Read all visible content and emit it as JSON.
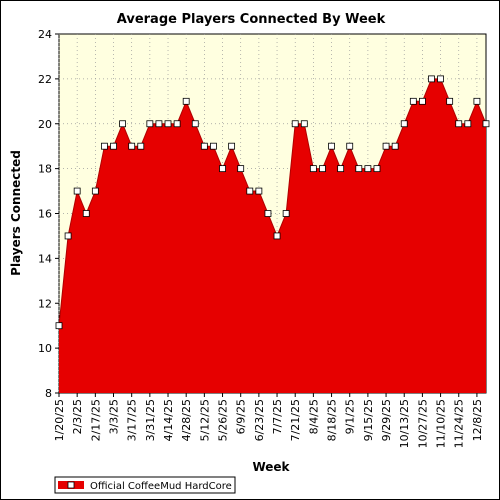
{
  "chart_data": {
    "type": "area",
    "title": "Average Players Connected By Week",
    "xlabel": "Week",
    "ylabel": "Players Connected",
    "ylim": [
      8,
      24
    ],
    "yticks": [
      8,
      10,
      12,
      14,
      16,
      18,
      20,
      22,
      24
    ],
    "grid": true,
    "legend_position": "bottom-left",
    "colors": {
      "plot_background": "#ffffe0",
      "area_fill": "#e60000",
      "grid": "#9a9a9a",
      "marker_fill": "#ffffff"
    },
    "x_tick_labels": [
      "1/20/25",
      "2/3/25",
      "2/17/25",
      "3/3/25",
      "3/17/25",
      "3/31/25",
      "4/14/25",
      "4/28/25",
      "5/12/25",
      "5/26/25",
      "6/9/25",
      "6/23/25",
      "7/7/25",
      "7/21/25",
      "8/4/25",
      "8/18/25",
      "9/1/25",
      "9/15/25",
      "9/29/25",
      "10/13/25",
      "10/27/25",
      "11/10/25",
      "11/24/25",
      "12/8/25"
    ],
    "series": [
      {
        "name": "Official CoffeeMud HardCore",
        "values": [
          11,
          15,
          17,
          16,
          17,
          19,
          19,
          20,
          19,
          19,
          20,
          20,
          20,
          20,
          21,
          20,
          19,
          19,
          18,
          19,
          18,
          17,
          17,
          16,
          15,
          16,
          20,
          20,
          18,
          18,
          19,
          18,
          19,
          18,
          18,
          18,
          19,
          19,
          20,
          21,
          21,
          22,
          22,
          21,
          20,
          20,
          21,
          20
        ]
      }
    ]
  }
}
